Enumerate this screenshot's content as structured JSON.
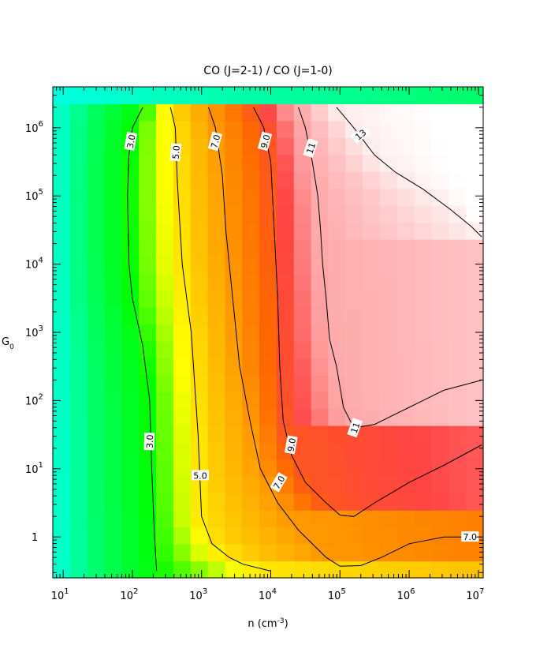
{
  "chart_data": {
    "type": "heatmap",
    "title": "CO (J=2-1) / CO (J=1-0)",
    "xlabel": "n (cm",
    "xlabel_sup": "-3",
    "xlabel_end": ")",
    "ylabel": "G",
    "ylabel_sub": "0",
    "x_log10_range": [
      0.85,
      7.07
    ],
    "y_log10_range": [
      -0.6,
      6.6
    ],
    "x_ticks": [
      {
        "base": "10",
        "exp": "1",
        "log10": 1
      },
      {
        "base": "10",
        "exp": "2",
        "log10": 2
      },
      {
        "base": "10",
        "exp": "3",
        "log10": 3
      },
      {
        "base": "10",
        "exp": "4",
        "log10": 4
      },
      {
        "base": "10",
        "exp": "5",
        "log10": 5
      },
      {
        "base": "10",
        "exp": "6",
        "log10": 6
      },
      {
        "base": "10",
        "exp": "7",
        "log10": 7
      }
    ],
    "y_ticks": [
      {
        "base": "1",
        "exp": "",
        "log10": 0
      },
      {
        "base": "10",
        "exp": "1",
        "log10": 1
      },
      {
        "base": "10",
        "exp": "2",
        "log10": 2
      },
      {
        "base": "10",
        "exp": "3",
        "log10": 3
      },
      {
        "base": "10",
        "exp": "4",
        "log10": 4
      },
      {
        "base": "10",
        "exp": "5",
        "log10": 5
      },
      {
        "base": "10",
        "exp": "6",
        "log10": 6
      }
    ],
    "grid": {
      "nx": 25,
      "ny": 29,
      "log10_x_start": 0.85,
      "log10_y_start": -0.6
    },
    "colormap": [
      {
        "v": 1.0,
        "color": "#00ffff"
      },
      {
        "v": 2.0,
        "color": "#00ff66"
      },
      {
        "v": 3.0,
        "color": "#00ff00"
      },
      {
        "v": 4.5,
        "color": "#ffff00"
      },
      {
        "v": 5.5,
        "color": "#ffcc00"
      },
      {
        "v": 7.0,
        "color": "#ff9900"
      },
      {
        "v": 8.5,
        "color": "#ff6600"
      },
      {
        "v": 9.5,
        "color": "#ff4444"
      },
      {
        "v": 10.5,
        "color": "#ff9999"
      },
      {
        "v": 11.5,
        "color": "#ffbbbb"
      },
      {
        "v": 12.5,
        "color": "#ffdddd"
      },
      {
        "v": 13.5,
        "color": "#ffffff"
      }
    ],
    "contours": [
      {
        "level": "3.0",
        "points": [
          [
            2.15,
            6.3
          ],
          [
            2.0,
            6.0
          ],
          [
            1.95,
            5.6
          ],
          [
            1.93,
            5.0
          ],
          [
            1.95,
            4.0
          ],
          [
            2.0,
            3.5
          ],
          [
            2.15,
            2.8
          ],
          [
            2.25,
            2.0
          ],
          [
            2.28,
            1.0
          ],
          [
            2.32,
            0.0
          ],
          [
            2.35,
            -0.5
          ]
        ]
      },
      {
        "level": "5.0",
        "points": [
          [
            2.55,
            6.3
          ],
          [
            2.62,
            6.0
          ],
          [
            2.65,
            5.2
          ],
          [
            2.72,
            4.0
          ],
          [
            2.85,
            3.0
          ],
          [
            2.95,
            1.5
          ],
          [
            3.0,
            0.3
          ],
          [
            3.15,
            -0.1
          ],
          [
            3.4,
            -0.3
          ],
          [
            3.6,
            -0.4
          ],
          [
            4.0,
            -0.5
          ]
        ]
      },
      {
        "level": "7.0",
        "points": [
          [
            3.1,
            6.3
          ],
          [
            3.2,
            6.0
          ],
          [
            3.3,
            5.3
          ],
          [
            3.35,
            4.5
          ],
          [
            3.45,
            3.5
          ],
          [
            3.55,
            2.5
          ],
          [
            3.7,
            1.7
          ],
          [
            3.85,
            1.0
          ],
          [
            4.1,
            0.5
          ],
          [
            4.4,
            0.1
          ],
          [
            4.8,
            -0.3
          ],
          [
            5.0,
            -0.43
          ],
          [
            5.3,
            -0.42
          ],
          [
            5.6,
            -0.3
          ],
          [
            6.0,
            -0.1
          ],
          [
            6.5,
            0.0
          ],
          [
            7.05,
            0.0
          ]
        ]
      },
      {
        "level": "9.0",
        "points": [
          [
            3.75,
            6.3
          ],
          [
            3.9,
            6.0
          ],
          [
            4.0,
            5.5
          ],
          [
            4.05,
            4.5
          ],
          [
            4.1,
            3.5
          ],
          [
            4.13,
            2.5
          ],
          [
            4.18,
            1.7
          ],
          [
            4.3,
            1.2
          ],
          [
            4.5,
            0.8
          ],
          [
            4.8,
            0.5
          ],
          [
            5.0,
            0.32
          ],
          [
            5.2,
            0.3
          ],
          [
            5.5,
            0.5
          ],
          [
            6.0,
            0.8
          ],
          [
            6.5,
            1.05
          ],
          [
            7.05,
            1.35
          ]
        ]
      },
      {
        "level": "11",
        "points": [
          [
            4.4,
            6.3
          ],
          [
            4.5,
            6.0
          ],
          [
            4.6,
            5.5
          ],
          [
            4.68,
            5.0
          ],
          [
            4.72,
            4.5
          ],
          [
            4.75,
            4.0
          ],
          [
            4.8,
            3.5
          ],
          [
            4.85,
            2.9
          ],
          [
            4.95,
            2.5
          ],
          [
            5.05,
            1.9
          ],
          [
            5.2,
            1.6
          ],
          [
            5.5,
            1.65
          ],
          [
            6.0,
            1.9
          ],
          [
            6.5,
            2.15
          ],
          [
            7.05,
            2.3
          ]
        ]
      },
      {
        "level": "13",
        "points": [
          [
            4.95,
            6.3
          ],
          [
            5.2,
            6.0
          ],
          [
            5.5,
            5.6
          ],
          [
            5.8,
            5.35
          ],
          [
            6.2,
            5.1
          ],
          [
            6.6,
            4.8
          ],
          [
            6.9,
            4.55
          ],
          [
            7.05,
            4.4
          ]
        ]
      }
    ],
    "contour_labels": [
      {
        "text": "3.0",
        "x": 1.98,
        "y": 5.8,
        "angle": -80
      },
      {
        "text": "3.0",
        "x": 2.25,
        "y": 1.4,
        "angle": -88
      },
      {
        "text": "5.0",
        "x": 2.63,
        "y": 5.64,
        "angle": -85
      },
      {
        "text": "5.0",
        "x": 2.98,
        "y": 0.9,
        "angle": 0
      },
      {
        "text": "7.0",
        "x": 3.2,
        "y": 5.8,
        "angle": -75
      },
      {
        "text": "7.0",
        "x": 4.12,
        "y": 0.8,
        "angle": -60
      },
      {
        "text": "7.0",
        "x": 6.88,
        "y": 0.0,
        "angle": 0
      },
      {
        "text": "9.0",
        "x": 3.92,
        "y": 5.8,
        "angle": -75
      },
      {
        "text": "9.0",
        "x": 4.3,
        "y": 1.35,
        "angle": -80
      },
      {
        "text": "11",
        "x": 4.58,
        "y": 5.7,
        "angle": -72
      },
      {
        "text": "11",
        "x": 5.22,
        "y": 1.6,
        "angle": -70
      },
      {
        "text": "13",
        "x": 5.3,
        "y": 5.9,
        "angle": -40
      }
    ]
  }
}
